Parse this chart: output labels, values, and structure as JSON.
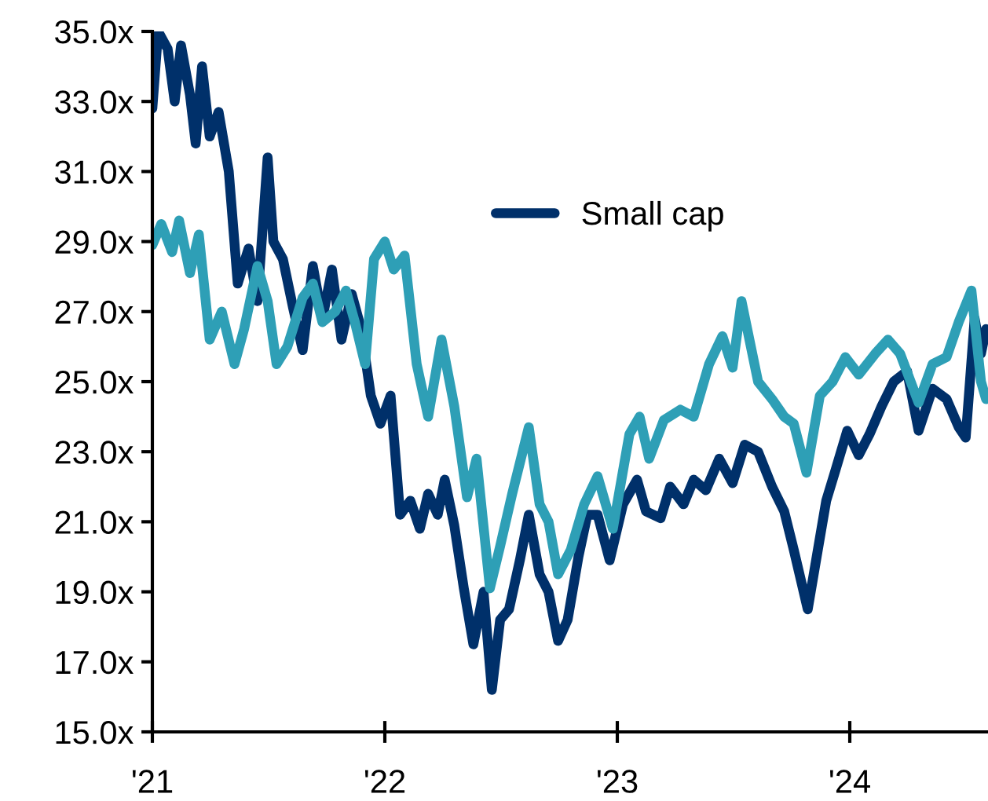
{
  "chart_data": {
    "type": "line",
    "xlim": [
      "2021-01-01",
      "2024-08-05"
    ],
    "xticks": [
      {
        "value": "2021-01-01",
        "label": "'21"
      },
      {
        "value": "2022-01-01",
        "label": "'22"
      },
      {
        "value": "2023-01-01",
        "label": "'23"
      },
      {
        "value": "2024-01-01",
        "label": "'24"
      }
    ],
    "ylim": [
      15,
      35
    ],
    "yticks": [
      {
        "value": 15,
        "label": "15.0x"
      },
      {
        "value": 17,
        "label": "17.0x"
      },
      {
        "value": 19,
        "label": "19.0x"
      },
      {
        "value": 21,
        "label": "21.0x"
      },
      {
        "value": 23,
        "label": "23.0x"
      },
      {
        "value": 25,
        "label": "25.0x"
      },
      {
        "value": 27,
        "label": "27.0x"
      },
      {
        "value": 29,
        "label": "29.0x"
      },
      {
        "value": 31,
        "label": "31.0x"
      },
      {
        "value": 33,
        "label": "33.0x"
      },
      {
        "value": 35,
        "label": "35.0x"
      }
    ],
    "grid": false,
    "legend": "top right",
    "marker": "none",
    "line_style": "solid",
    "series": [
      {
        "name": "Small cap",
        "color": "#00306a",
        "x": [
          "2021-01-01",
          "2021-01-10",
          "2021-01-25",
          "2021-02-05",
          "2021-02-15",
          "2021-03-01",
          "2021-03-10",
          "2021-03-20",
          "2021-04-01",
          "2021-04-15",
          "2021-05-01",
          "2021-05-15",
          "2021-06-01",
          "2021-06-15",
          "2021-07-01",
          "2021-07-10",
          "2021-07-25",
          "2021-08-10",
          "2021-08-25",
          "2021-09-10",
          "2021-09-25",
          "2021-10-10",
          "2021-10-25",
          "2021-11-10",
          "2021-11-25",
          "2021-12-10",
          "2021-12-25",
          "2022-01-10",
          "2022-01-25",
          "2022-02-10",
          "2022-02-25",
          "2022-03-10",
          "2022-03-25",
          "2022-04-05",
          "2022-04-20",
          "2022-05-05",
          "2022-05-20",
          "2022-06-05",
          "2022-06-18",
          "2022-07-01",
          "2022-07-15",
          "2022-08-01",
          "2022-08-15",
          "2022-09-01",
          "2022-09-15",
          "2022-09-30",
          "2022-10-15",
          "2022-11-01",
          "2022-11-15",
          "2022-12-01",
          "2022-12-20",
          "2023-01-10",
          "2023-02-01",
          "2023-02-15",
          "2023-03-10",
          "2023-03-25",
          "2023-04-15",
          "2023-05-01",
          "2023-05-20",
          "2023-06-10",
          "2023-07-01",
          "2023-07-20",
          "2023-08-10",
          "2023-09-01",
          "2023-09-20",
          "2023-10-05",
          "2023-10-27",
          "2023-11-10",
          "2023-11-25",
          "2023-12-10",
          "2023-12-28",
          "2024-01-15",
          "2024-02-01",
          "2024-02-20",
          "2024-03-10",
          "2024-03-31",
          "2024-04-18",
          "2024-05-10",
          "2024-06-01",
          "2024-06-20",
          "2024-07-01",
          "2024-07-15",
          "2024-07-25",
          "2024-08-02"
        ],
        "values": [
          32.8,
          35.0,
          34.5,
          33.0,
          34.6,
          33.2,
          31.8,
          34.0,
          32.0,
          32.7,
          31.0,
          27.8,
          28.8,
          27.3,
          31.4,
          29.0,
          28.5,
          27.1,
          25.9,
          28.3,
          26.8,
          28.2,
          26.2,
          27.5,
          26.5,
          24.6,
          23.8,
          24.6,
          21.2,
          21.6,
          20.8,
          21.8,
          21.2,
          22.2,
          20.9,
          19.1,
          17.5,
          19.0,
          16.2,
          18.2,
          18.5,
          19.9,
          21.2,
          19.5,
          19.0,
          17.6,
          18.2,
          20.0,
          21.2,
          21.2,
          19.9,
          21.5,
          22.2,
          21.3,
          21.1,
          22.0,
          21.5,
          22.2,
          21.9,
          22.8,
          22.1,
          23.2,
          23.0,
          22.0,
          21.3,
          20.2,
          18.5,
          20.0,
          21.6,
          22.5,
          23.6,
          22.9,
          23.5,
          24.3,
          25.0,
          25.3,
          23.6,
          24.8,
          24.5,
          23.7,
          23.4,
          26.8,
          25.8,
          26.5
        ]
      },
      {
        "color": "#2e9fb6",
        "x": [
          "2021-01-01",
          "2021-01-15",
          "2021-02-01",
          "2021-02-12",
          "2021-03-01",
          "2021-03-15",
          "2021-04-01",
          "2021-04-20",
          "2021-05-10",
          "2021-05-25",
          "2021-06-15",
          "2021-07-01",
          "2021-07-15",
          "2021-08-01",
          "2021-08-25",
          "2021-09-10",
          "2021-09-25",
          "2021-10-15",
          "2021-11-01",
          "2021-11-15",
          "2021-12-01",
          "2021-12-15",
          "2022-01-01",
          "2022-01-15",
          "2022-02-01",
          "2022-02-20",
          "2022-03-10",
          "2022-03-31",
          "2022-04-20",
          "2022-05-10",
          "2022-05-25",
          "2022-06-15",
          "2022-07-01",
          "2022-07-20",
          "2022-08-15",
          "2022-09-01",
          "2022-09-15",
          "2022-09-30",
          "2022-10-20",
          "2022-11-10",
          "2022-12-01",
          "2022-12-25",
          "2023-01-20",
          "2023-02-05",
          "2023-02-20",
          "2023-03-15",
          "2023-04-10",
          "2023-05-01",
          "2023-05-25",
          "2023-06-15",
          "2023-07-01",
          "2023-07-15",
          "2023-08-10",
          "2023-09-01",
          "2023-09-20",
          "2023-10-05",
          "2023-10-25",
          "2023-11-15",
          "2023-12-05",
          "2023-12-25",
          "2024-01-15",
          "2024-02-10",
          "2024-03-01",
          "2024-03-20",
          "2024-04-18",
          "2024-05-10",
          "2024-06-01",
          "2024-06-20",
          "2024-07-10",
          "2024-07-25",
          "2024-08-02"
        ],
        "values": [
          28.9,
          29.5,
          28.7,
          29.6,
          28.1,
          29.2,
          26.2,
          27.0,
          25.5,
          26.5,
          28.3,
          27.3,
          25.5,
          26.0,
          27.4,
          27.8,
          26.7,
          27.0,
          27.6,
          26.7,
          25.5,
          28.5,
          29.0,
          28.2,
          28.6,
          25.5,
          24.0,
          26.2,
          24.3,
          21.7,
          22.8,
          19.1,
          20.3,
          21.8,
          23.7,
          21.5,
          21.0,
          19.5,
          20.2,
          21.5,
          22.3,
          20.8,
          23.5,
          24.0,
          22.8,
          23.9,
          24.2,
          24.0,
          25.5,
          26.3,
          25.4,
          27.3,
          25.0,
          24.5,
          24.0,
          23.8,
          22.4,
          24.6,
          25.0,
          25.7,
          25.2,
          25.8,
          26.2,
          25.8,
          24.4,
          25.5,
          25.7,
          26.7,
          27.6,
          25.0,
          24.5
        ]
      }
    ]
  }
}
